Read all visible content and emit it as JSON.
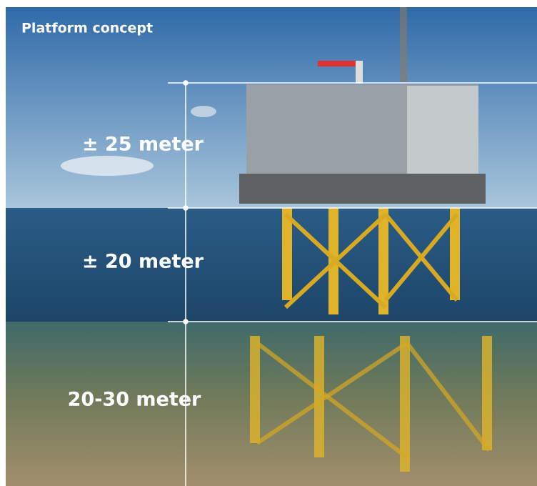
{
  "title": "Platform concept",
  "sections": [
    "± 25 meter",
    "± 20 meter",
    "20-30 meter"
  ]
}
